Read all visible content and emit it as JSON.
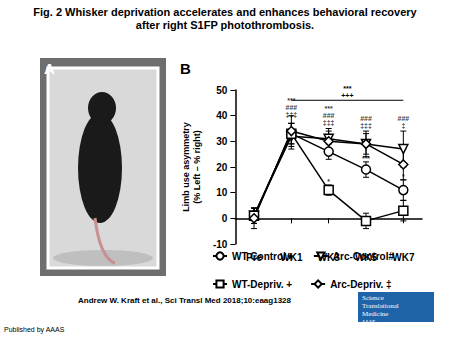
{
  "title": "Fig. 2 Whisker deprivation accelerates and enhances behavioral recovery after right S1FP photothrombosis.",
  "panels": [
    "A",
    "B"
  ],
  "citation": "Andrew W. Kraft et al., Sci Transl Med 2018;10:eaag1328",
  "publisher": "Published by AAAS",
  "logo": [
    "Science",
    "Translational",
    "Medicine"
  ],
  "logo_org": "AAAS",
  "chart_data": {
    "type": "line",
    "y_label": "Limb use asymmetry\n(% Left – % right)",
    "categories": [
      "Pre",
      "WK1",
      "WK3",
      "WK5",
      "WK7"
    ],
    "ylim": [
      -10,
      50
    ],
    "yticks": [
      -10,
      0,
      10,
      20,
      30,
      40,
      50
    ],
    "grid": false,
    "legend": "bottom",
    "series": [
      {
        "name": "WT-Control★",
        "color": "#000000",
        "marker": "circle",
        "values": [
          1,
          33,
          26,
          19,
          11
        ],
        "errors": [
          3,
          4,
          3,
          3,
          4
        ]
      },
      {
        "name": "Arc-Control#",
        "color": "#000000",
        "marker": "triangle-down",
        "values": [
          1,
          32,
          31,
          29,
          27
        ],
        "errors": [
          3,
          5,
          4,
          4,
          7
        ]
      },
      {
        "name": "WT-Depriv. +",
        "color": "#000000",
        "marker": "square",
        "values": [
          1,
          33,
          11,
          -1,
          3
        ],
        "errors": [
          3,
          4,
          2,
          3,
          4
        ]
      },
      {
        "name": "Arc-Depriv. ‡",
        "color": "#000000",
        "marker": "diamond",
        "values": [
          0,
          34,
          30,
          29,
          21
        ],
        "errors": [
          4,
          6,
          4,
          5,
          6
        ]
      }
    ],
    "annotations": [
      {
        "x": "WK1",
        "y": 39,
        "text": "***\n###\n‡‡‡"
      },
      {
        "x": "WK3",
        "y": 36,
        "text": "***\n###\n‡‡‡"
      },
      {
        "x": "WK5",
        "y": 35,
        "text": "###\n‡‡‡"
      },
      {
        "x": "WK7",
        "y": 35,
        "text": "###\n‡"
      },
      {
        "x": "WK3",
        "y": 13,
        "text": "*"
      },
      {
        "x": "WK5",
        "y": 22,
        "text": "***"
      },
      {
        "x": "WK7",
        "y": 15,
        "text": "*"
      }
    ],
    "bracket": {
      "from": "WK1",
      "to": "WK7",
      "y": 46,
      "text": "***\n+++"
    }
  }
}
